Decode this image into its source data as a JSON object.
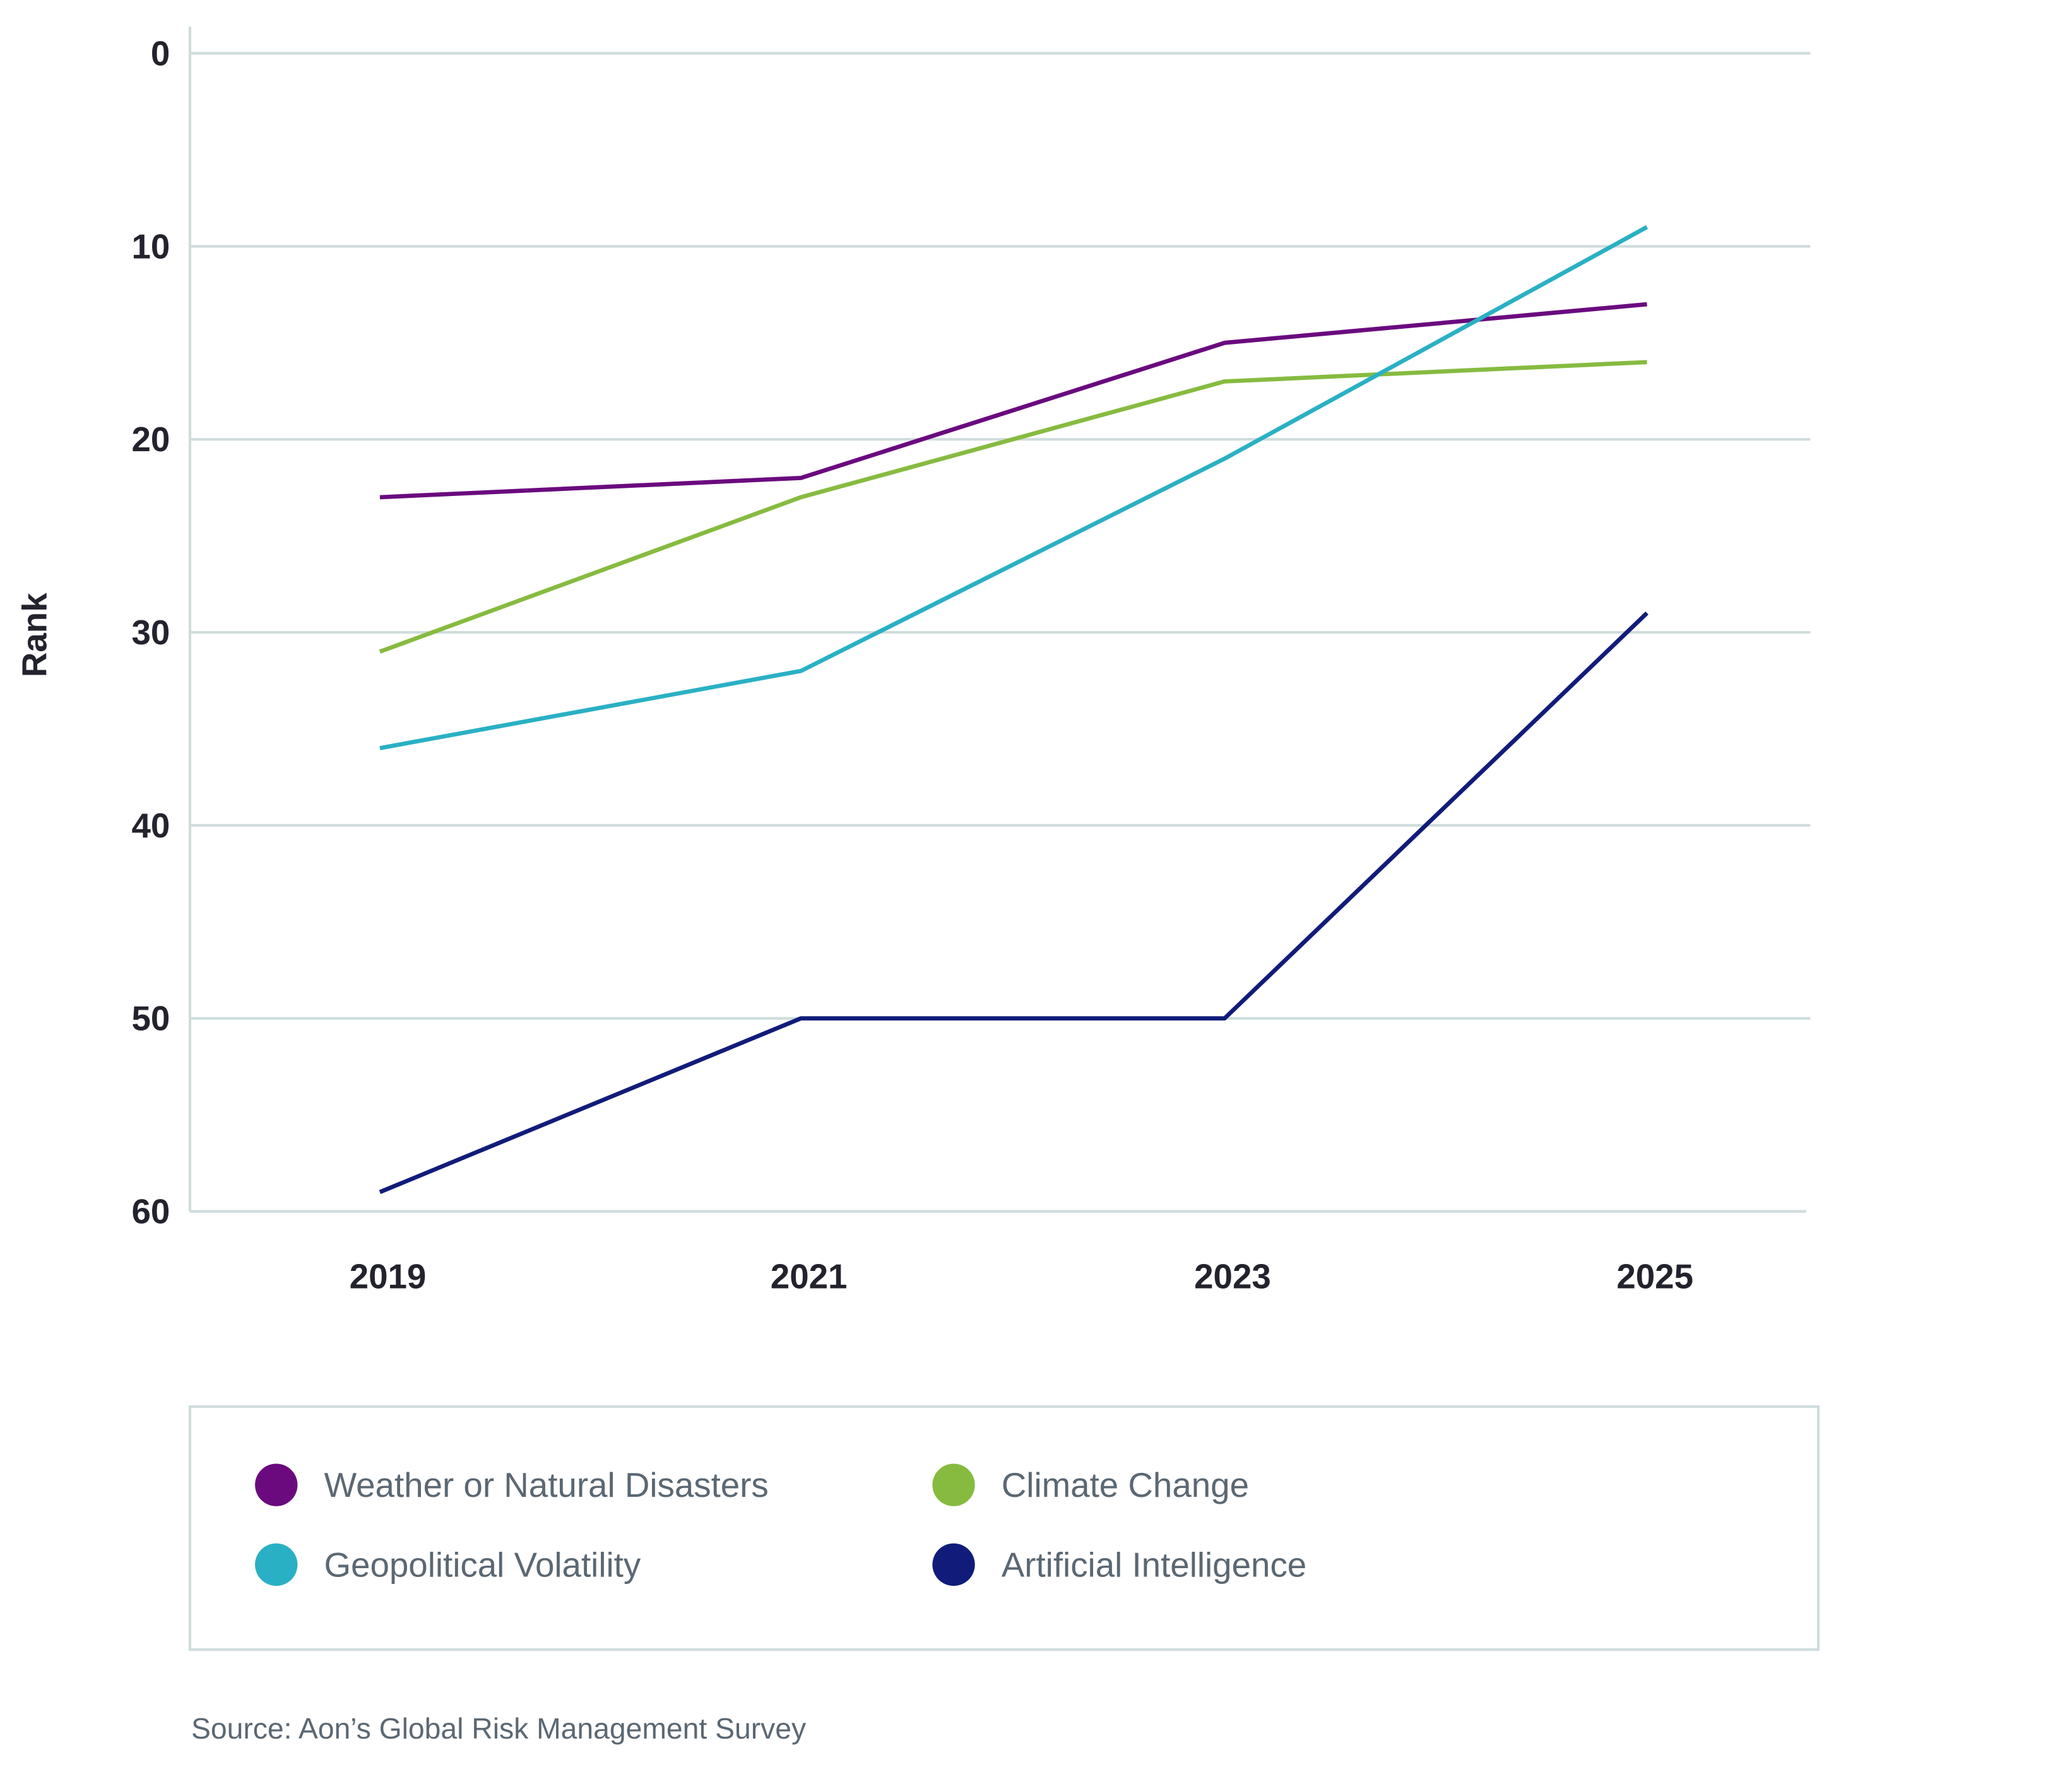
{
  "chart_data": {
    "type": "line",
    "title": "",
    "xlabel": "",
    "ylabel": "Rank",
    "x": [
      "2019",
      "2021",
      "2023",
      "2025"
    ],
    "ylim": [
      60,
      0
    ],
    "y_inverted": true,
    "yticks": [
      0,
      10,
      20,
      30,
      40,
      50,
      60
    ],
    "grid": true,
    "legend_position": "bottom",
    "series": [
      {
        "name": "Weather or Natural Disasters",
        "color": "#6a0a7e",
        "values": [
          23,
          22,
          15,
          13
        ]
      },
      {
        "name": "Climate Change",
        "color": "#86bb40",
        "values": [
          31,
          23,
          17,
          16
        ]
      },
      {
        "name": "Geopolitical Volatility",
        "color": "#2ab0c4",
        "values": [
          36,
          32,
          21,
          9
        ]
      },
      {
        "name": "Artificial Intelligence",
        "color": "#111c7a",
        "values": [
          59,
          50,
          50,
          29
        ]
      }
    ],
    "source": "Source: Aon’s Global Risk Management Survey"
  }
}
